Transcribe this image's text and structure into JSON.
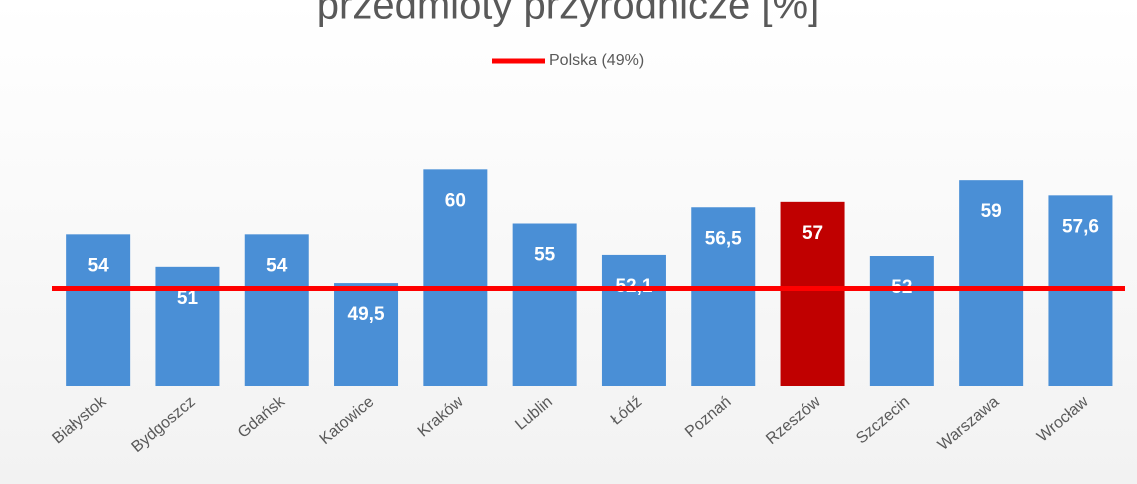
{
  "chart_data": {
    "type": "bar",
    "title": "przedmioty przyrodnicze [%]",
    "categories": [
      "Białystok",
      "Bydgoszcz",
      "Gdańsk",
      "Katowice",
      "Kraków",
      "Lublin",
      "Łódź",
      "Poznań",
      "Rzeszów",
      "Szczecin",
      "Warszawa",
      "Wrocław"
    ],
    "values": [
      54,
      51,
      54,
      49.5,
      60,
      55,
      52.1,
      56.5,
      57,
      52,
      59,
      57.6
    ],
    "value_labels": [
      "54",
      "51",
      "54",
      "49,5",
      "60",
      "55",
      "52,1",
      "56,5",
      "57",
      "52",
      "59",
      "57,6"
    ],
    "colors": [
      "#4a8fd6",
      "#4a8fd6",
      "#4a8fd6",
      "#4a8fd6",
      "#4a8fd6",
      "#4a8fd6",
      "#4a8fd6",
      "#4a8fd6",
      "#c00000",
      "#4a8fd6",
      "#4a8fd6",
      "#4a8fd6"
    ],
    "ylim": [
      40,
      70
    ],
    "reference_line": {
      "name": "Polska (49%)",
      "value": 49,
      "color": "#ff0000"
    },
    "legend": "top"
  }
}
